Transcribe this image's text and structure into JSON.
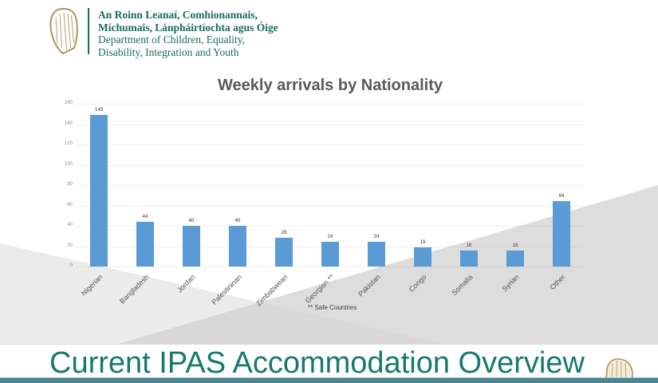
{
  "header": {
    "department_irish": [
      "An Roinn Leanaí, Comhionannais,",
      "Míchumais, Lánpháirtíochta agus Óige"
    ],
    "department_english": [
      "Department of Children, Equality,",
      "Disability, Integration and Youth"
    ]
  },
  "chart_data": {
    "type": "bar",
    "title": "Weekly arrivals by Nationality",
    "categories": [
      "Nigerian",
      "Bangladesh",
      "Jordan",
      "Palestininan",
      "Zimbabwean",
      "Georgian **",
      "Pakistan",
      "Congo",
      "Somalia",
      "Syrian",
      "Other"
    ],
    "values": [
      149,
      44,
      40,
      40,
      28,
      24,
      24,
      19,
      16,
      16,
      64
    ],
    "xlabel": "",
    "ylabel": "",
    "ylim": [
      0,
      160
    ],
    "ytick_step": 20,
    "grid": true,
    "legend": "none",
    "footnote": "** Safe Countries",
    "bar_color": "#5b9bd5"
  },
  "footer": {
    "title": "Current IPAS Accommodation Overview"
  },
  "colors": {
    "header_teal": "#1a6b5f",
    "footer_teal": "#17796d",
    "harp_gold": "#ab9559",
    "bar_blue": "#5b9bd5",
    "title_gray": "#595959"
  }
}
